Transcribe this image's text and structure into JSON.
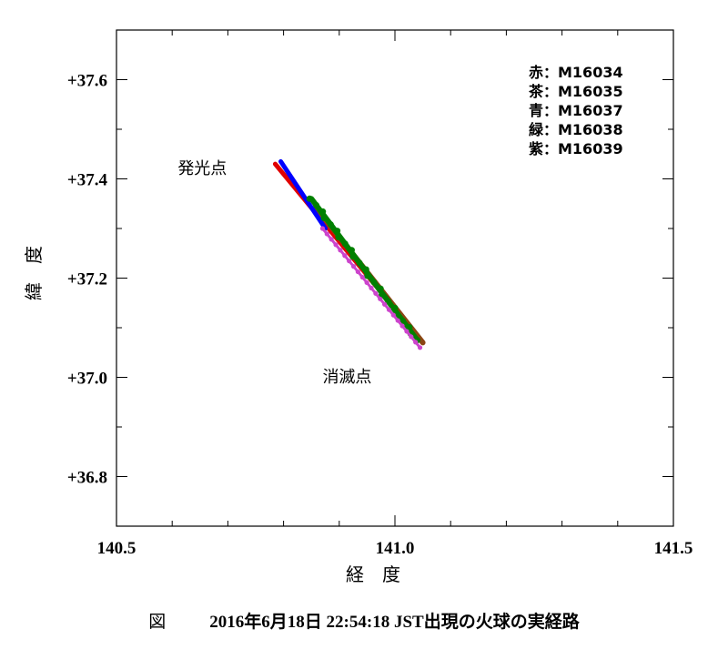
{
  "chart_data": {
    "type": "scatter",
    "xlabel": "経 度",
    "ylabel": "緯 度",
    "xlim": [
      140.5,
      141.5
    ],
    "ylim": [
      36.7,
      37.7
    ],
    "x_ticks": [
      {
        "value": 140.5,
        "label": "140.5"
      },
      {
        "value": 141.0,
        "label": "141.0"
      },
      {
        "value": 141.5,
        "label": "141.5"
      }
    ],
    "y_ticks": [
      {
        "value": 37.6,
        "label": "+37.6"
      },
      {
        "value": 37.4,
        "label": "+37.4"
      },
      {
        "value": 37.2,
        "label": "+37.2"
      },
      {
        "value": 37.0,
        "label": "+37.0"
      },
      {
        "value": 36.8,
        "label": "+36.8"
      }
    ],
    "legend_position": "top-right",
    "series": [
      {
        "name": "M16034",
        "legend": "赤：M16034",
        "color": "#e00000",
        "x": [
          140.785,
          141.05
        ],
        "y": [
          37.43,
          37.07
        ]
      },
      {
        "name": "M16035",
        "legend": "茶：M16035",
        "color": "#8b4513",
        "x": [
          140.86,
          141.05
        ],
        "y": [
          37.34,
          37.07
        ]
      },
      {
        "name": "M16037",
        "legend": "青：M16037",
        "color": "#0000ff",
        "x": [
          140.795,
          140.875
        ],
        "y": [
          37.435,
          37.3
        ]
      },
      {
        "name": "M16038",
        "legend": "緑：M16038",
        "color": "#008000",
        "x": [
          140.85,
          141.04
        ],
        "y": [
          37.36,
          37.075
        ]
      },
      {
        "name": "M16039",
        "legend": "紫：M16039",
        "color": "#cc44cc",
        "x": [
          140.87,
          141.045
        ],
        "y": [
          37.3,
          37.06
        ]
      }
    ],
    "annotations": [
      {
        "text": "発光点",
        "x": 140.61,
        "y": 37.41
      },
      {
        "text": "消滅点",
        "x": 140.87,
        "y": 36.99
      }
    ]
  },
  "caption": {
    "label": "図",
    "text": "2016年6月18日 22:54:18 JST出現の火球の実経路"
  }
}
